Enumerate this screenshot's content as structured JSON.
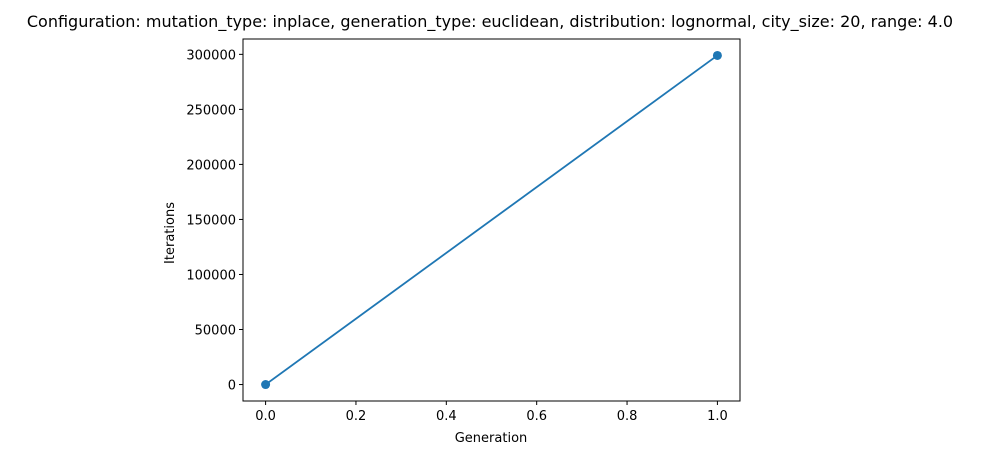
{
  "chart_data": {
    "type": "line",
    "title": "Configuration: mutation_type: inplace, generation_type: euclidean, distribution: lognormal, city_size: 20, range: 4.0",
    "xlabel": "Generation",
    "ylabel": "Iterations",
    "xlim": [
      -0.05,
      1.05
    ],
    "ylim": [
      -14950,
      313950
    ],
    "x_ticks": [
      0.0,
      0.2,
      0.4,
      0.6,
      0.8,
      1.0
    ],
    "x_tick_labels": [
      "0.0",
      "0.2",
      "0.4",
      "0.6",
      "0.8",
      "1.0"
    ],
    "y_ticks": [
      0,
      50000,
      100000,
      150000,
      200000,
      250000,
      300000
    ],
    "y_tick_labels": [
      "0",
      "50000",
      "100000",
      "150000",
      "200000",
      "250000",
      "300000"
    ],
    "grid": false,
    "legend": "none",
    "series": [
      {
        "x": [
          0,
          1
        ],
        "values": [
          0,
          299000
        ],
        "color": "#1f77b4",
        "marker": "circle"
      }
    ]
  }
}
